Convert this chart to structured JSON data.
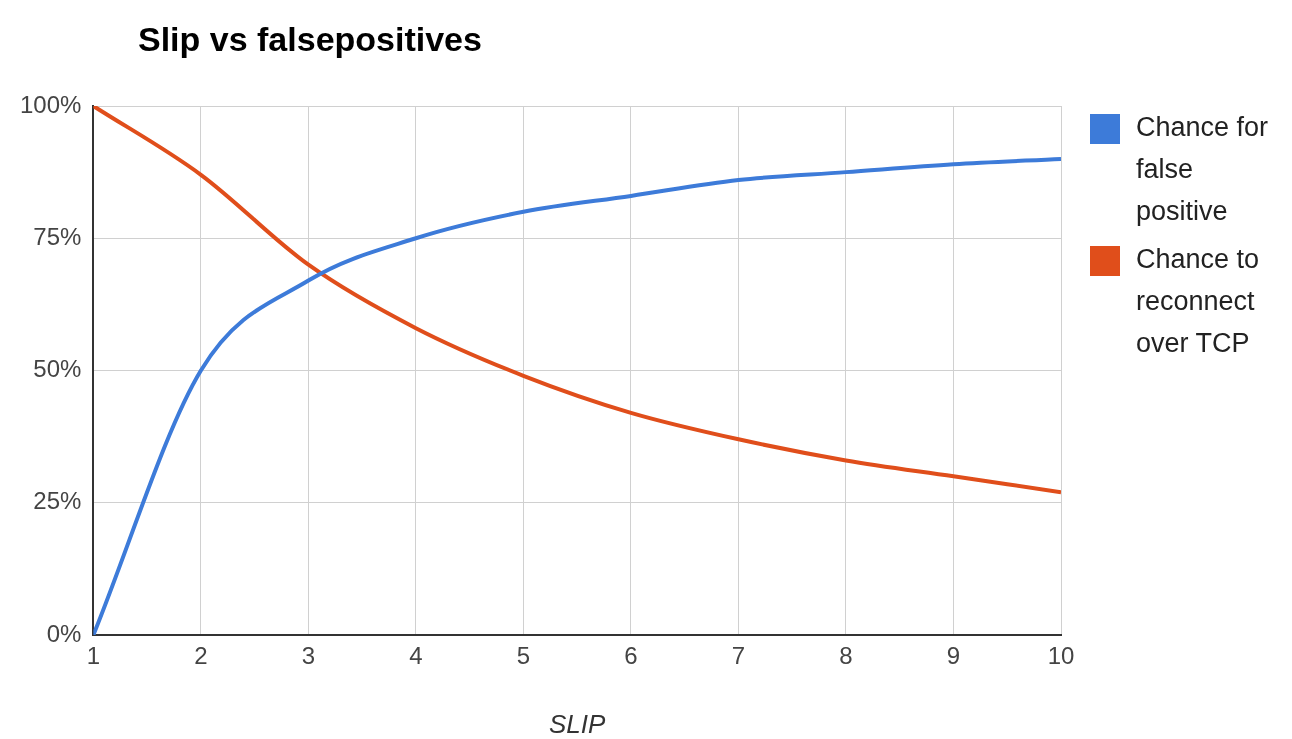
{
  "chart_data": {
    "type": "line",
    "title": "Slip vs falsepositives",
    "xlabel": "SLIP",
    "x": [
      1,
      2,
      3,
      4,
      5,
      6,
      7,
      8,
      9,
      10
    ],
    "series": [
      {
        "name": "Chance for false positive",
        "color": "#3d7bd9",
        "values": [
          0,
          50,
          67,
          75,
          80,
          83,
          86,
          87.5,
          89,
          90
        ]
      },
      {
        "name": "Chance to reconnect over TCP",
        "color": "#e04e1b",
        "values": [
          100,
          87,
          70,
          58,
          49,
          42,
          37,
          33,
          30,
          27
        ]
      }
    ],
    "xlim": [
      1,
      10
    ],
    "xticks": [
      1,
      2,
      3,
      4,
      5,
      6,
      7,
      8,
      9,
      10
    ],
    "ylim": [
      0,
      100
    ],
    "yticks": [
      {
        "value": 0,
        "label": "0%"
      },
      {
        "value": 25,
        "label": "25%"
      },
      {
        "value": 50,
        "label": "50%"
      },
      {
        "value": 75,
        "label": "75%"
      },
      {
        "value": 100,
        "label": "100%"
      }
    ],
    "grid": true,
    "legend": "right",
    "marker": "none",
    "line_style": "solid"
  }
}
